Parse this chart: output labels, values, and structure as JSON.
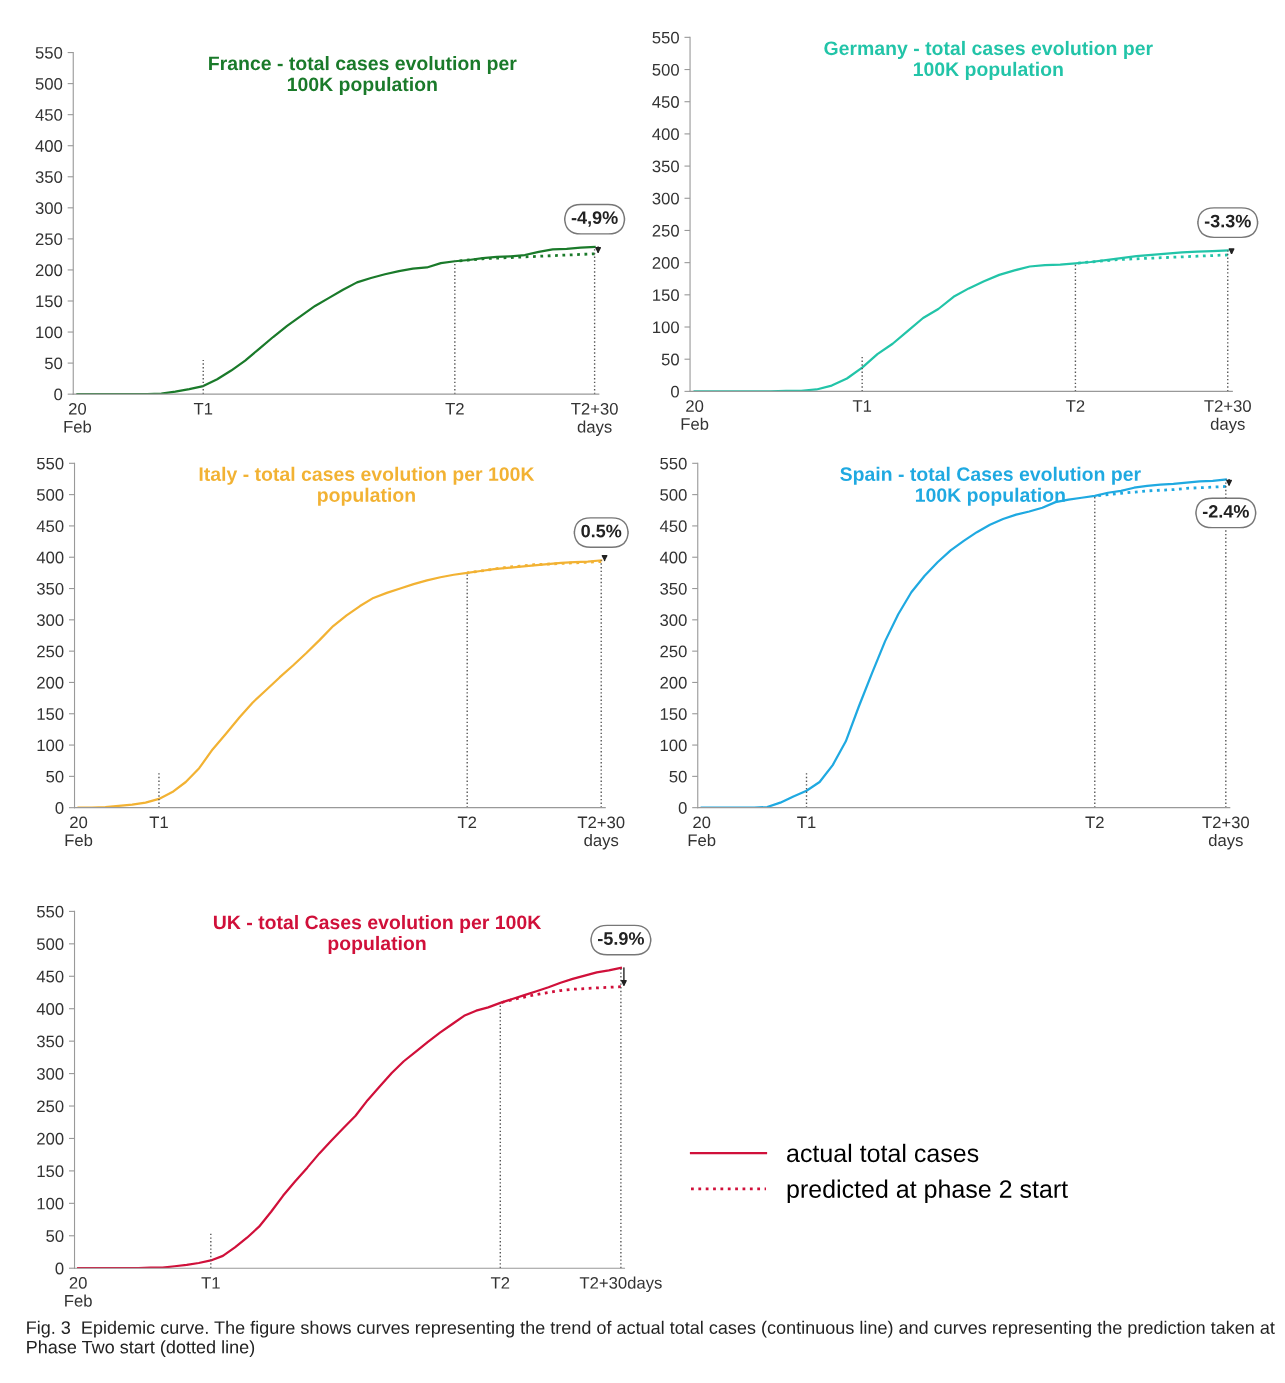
{
  "chart_data": [
    {
      "type": "line",
      "title": "France - total cases evolution per\n100K population",
      "categories": [
        "20\nFeb",
        null,
        null,
        null,
        null,
        null,
        null,
        null,
        null,
        "T1",
        null,
        null,
        null,
        null,
        null,
        null,
        null,
        null,
        null,
        null,
        null,
        null,
        null,
        null,
        null,
        null,
        null,
        "T2",
        null,
        null,
        null,
        null,
        null,
        null,
        null,
        null,
        null,
        "T2+30\ndays"
      ],
      "ylim": [
        0,
        550
      ],
      "yticks": [
        0,
        50,
        100,
        150,
        200,
        250,
        300,
        350,
        400,
        450,
        500,
        550
      ],
      "grid": false,
      "series": [
        {
          "color": "#1a7a2a",
          "line_style": "solid",
          "values": [
            0,
            0,
            0,
            0,
            0,
            0,
            1,
            4,
            8,
            13,
            24,
            38,
            54,
            73,
            92,
            110,
            126,
            142,
            155,
            168,
            180,
            187,
            193,
            198,
            202,
            204,
            211,
            214,
            216,
            219,
            221,
            222,
            224,
            229,
            233,
            234,
            236,
            237
          ]
        },
        {
          "color": "#1a7a2a",
          "line_style": "dotted",
          "values": [
            null,
            null,
            null,
            null,
            null,
            null,
            null,
            null,
            null,
            null,
            null,
            null,
            null,
            null,
            null,
            null,
            null,
            null,
            null,
            null,
            null,
            null,
            null,
            null,
            null,
            null,
            null,
            214,
            216,
            218,
            219,
            220,
            221,
            222,
            223,
            224,
            225,
            226
          ]
        }
      ],
      "ref_lines": [
        {
          "axis": "x",
          "value": "T1",
          "color": "#555555",
          "line_style": "dotted"
        },
        {
          "axis": "x",
          "value": "T2",
          "color": "#555555",
          "line_style": "dotted"
        },
        {
          "axis": "x",
          "value": "T2+30\ndays",
          "color": "#555555",
          "line_style": "dotted"
        }
      ],
      "annotations": [
        {
          "text": "-4,9%",
          "x": "T2+30\ndays",
          "y": 237
        }
      ]
    },
    {
      "type": "line",
      "title": "Germany - total cases evolution per\n100K population",
      "categories": [
        "20\nFeb",
        null,
        null,
        null,
        null,
        null,
        null,
        null,
        null,
        null,
        null,
        "T1",
        null,
        null,
        null,
        null,
        null,
        null,
        null,
        null,
        null,
        null,
        null,
        null,
        null,
        "T2",
        null,
        null,
        null,
        null,
        null,
        null,
        null,
        null,
        null,
        "T2+30\ndays"
      ],
      "ylim": [
        0,
        550
      ],
      "yticks": [
        0,
        50,
        100,
        150,
        200,
        250,
        300,
        350,
        400,
        450,
        500,
        550
      ],
      "grid": false,
      "series": [
        {
          "color": "#22c4a8",
          "line_style": "solid",
          "values": [
            0,
            0,
            0,
            0,
            0,
            0,
            1,
            1,
            3,
            9,
            20,
            37,
            58,
            74,
            94,
            114,
            128,
            147,
            160,
            171,
            181,
            188,
            194,
            196,
            197,
            199,
            201,
            204,
            207,
            210,
            212,
            214,
            216,
            217,
            218,
            219
          ]
        },
        {
          "color": "#22c4a8",
          "line_style": "dotted",
          "values": [
            null,
            null,
            null,
            null,
            null,
            null,
            null,
            null,
            null,
            null,
            null,
            null,
            null,
            null,
            null,
            null,
            null,
            null,
            null,
            null,
            null,
            null,
            null,
            null,
            null,
            199,
            201,
            203,
            205,
            206,
            207,
            208,
            209,
            210,
            211,
            212
          ]
        }
      ],
      "ref_lines": [
        {
          "axis": "x",
          "value": "T1",
          "color": "#555555",
          "line_style": "dotted"
        },
        {
          "axis": "x",
          "value": "T2",
          "color": "#555555",
          "line_style": "dotted"
        },
        {
          "axis": "x",
          "value": "T2+30\ndays",
          "color": "#555555",
          "line_style": "dotted"
        }
      ],
      "annotations": [
        {
          "text": "-3.3%",
          "x": "T2+30\ndays",
          "y": 219
        }
      ]
    },
    {
      "type": "line",
      "title": "Italy - total cases evolution per 100K\npopulation",
      "categories": [
        "20\nFeb",
        null,
        null,
        null,
        null,
        null,
        "T1",
        null,
        null,
        null,
        null,
        null,
        null,
        null,
        null,
        null,
        null,
        null,
        null,
        null,
        null,
        null,
        null,
        null,
        null,
        null,
        null,
        null,
        null,
        "T2",
        null,
        null,
        null,
        null,
        null,
        null,
        null,
        null,
        null,
        "T2+30\ndays"
      ],
      "ylim": [
        0,
        550
      ],
      "yticks": [
        0,
        50,
        100,
        150,
        200,
        250,
        300,
        350,
        400,
        450,
        500,
        550
      ],
      "grid": false,
      "series": [
        {
          "color": "#f2b233",
          "line_style": "solid",
          "values": [
            0,
            0,
            1,
            3,
            5,
            8,
            14,
            25,
            41,
            63,
            93,
            118,
            144,
            168,
            188,
            208,
            227,
            247,
            268,
            290,
            307,
            322,
            335,
            343,
            350,
            357,
            363,
            368,
            372,
            375,
            378,
            381,
            383,
            385,
            387,
            389,
            391,
            392,
            393,
            395
          ]
        },
        {
          "color": "#f2b233",
          "line_style": "dotted",
          "values": [
            null,
            null,
            null,
            null,
            null,
            null,
            null,
            null,
            null,
            null,
            null,
            null,
            null,
            null,
            null,
            null,
            null,
            null,
            null,
            null,
            null,
            null,
            null,
            null,
            null,
            null,
            null,
            null,
            null,
            375,
            378,
            381,
            384,
            386,
            388,
            389,
            390,
            391,
            392,
            393
          ]
        }
      ],
      "ref_lines": [
        {
          "axis": "x",
          "value": "T1",
          "color": "#555555",
          "line_style": "dotted"
        },
        {
          "axis": "x",
          "value": "T2",
          "color": "#555555",
          "line_style": "dotted"
        },
        {
          "axis": "x",
          "value": "T2+30\ndays",
          "color": "#555555",
          "line_style": "dotted"
        }
      ],
      "annotations": [
        {
          "text": "0.5%",
          "x": "T2+30\ndays",
          "y": 395
        }
      ]
    },
    {
      "type": "line",
      "title": "Spain - total Cases evolution per\n100K population",
      "categories": [
        "20\nFeb",
        null,
        null,
        null,
        null,
        null,
        null,
        null,
        "T1",
        null,
        null,
        null,
        null,
        null,
        null,
        null,
        null,
        null,
        null,
        null,
        null,
        null,
        null,
        null,
        null,
        null,
        null,
        null,
        null,
        null,
        "T2",
        null,
        null,
        null,
        null,
        null,
        null,
        null,
        null,
        null,
        "T2+30\ndays"
      ],
      "ylim": [
        0,
        550
      ],
      "yticks": [
        0,
        50,
        100,
        150,
        200,
        250,
        300,
        350,
        400,
        450,
        500,
        550
      ],
      "grid": false,
      "series": [
        {
          "color": "#1fa9e1",
          "line_style": "solid",
          "values": [
            0,
            0,
            0,
            0,
            0,
            1,
            8,
            18,
            27,
            41,
            68,
            106,
            162,
            215,
            266,
            309,
            344,
            370,
            392,
            411,
            426,
            440,
            452,
            461,
            468,
            473,
            479,
            488,
            492,
            495,
            498,
            503,
            506,
            511,
            514,
            516,
            517,
            519,
            521,
            522,
            524
          ]
        },
        {
          "color": "#1fa9e1",
          "line_style": "dotted",
          "values": [
            null,
            null,
            null,
            null,
            null,
            null,
            null,
            null,
            null,
            null,
            null,
            null,
            null,
            null,
            null,
            null,
            null,
            null,
            null,
            null,
            null,
            null,
            null,
            null,
            null,
            null,
            null,
            null,
            null,
            null,
            498,
            500,
            502,
            504,
            506,
            507,
            508,
            510,
            511,
            512,
            513
          ]
        }
      ],
      "ref_lines": [
        {
          "axis": "x",
          "value": "T1",
          "color": "#555555",
          "line_style": "dotted"
        },
        {
          "axis": "x",
          "value": "T2",
          "color": "#555555",
          "line_style": "dotted"
        },
        {
          "axis": "x",
          "value": "T2+30\ndays",
          "color": "#555555",
          "line_style": "dotted"
        }
      ],
      "annotations": [
        {
          "text": "-2.4%",
          "x": "T2+30\ndays",
          "y": 524
        }
      ]
    },
    {
      "type": "line",
      "title": "UK - total Cases evolution per 100K\npopulation",
      "categories": [
        "20\nFeb",
        null,
        null,
        null,
        null,
        null,
        null,
        null,
        null,
        null,
        null,
        "T1",
        null,
        null,
        null,
        null,
        null,
        null,
        null,
        null,
        null,
        null,
        null,
        null,
        null,
        null,
        null,
        null,
        null,
        null,
        null,
        null,
        null,
        null,
        null,
        "T2",
        null,
        null,
        null,
        null,
        null,
        null,
        null,
        null,
        null,
        "T2+30days"
      ],
      "ylim": [
        0,
        550
      ],
      "yticks": [
        0,
        50,
        100,
        150,
        200,
        250,
        300,
        350,
        400,
        450,
        500,
        550
      ],
      "grid": false,
      "legend": "right",
      "series": [
        {
          "name": "actual total cases",
          "color": "#d0103a",
          "line_style": "solid",
          "values": [
            0,
            0,
            0,
            0,
            0,
            0,
            1,
            1,
            3,
            5,
            8,
            12,
            19,
            32,
            47,
            64,
            87,
            112,
            134,
            155,
            177,
            197,
            216,
            235,
            259,
            280,
            301,
            319,
            334,
            349,
            363,
            376,
            389,
            397,
            402,
            409,
            415,
            421,
            427,
            433,
            440,
            446,
            451,
            456,
            459,
            463
          ]
        },
        {
          "name": "predicted at phase 2 start",
          "color": "#d0103a",
          "line_style": "dotted",
          "values": [
            null,
            null,
            null,
            null,
            null,
            null,
            null,
            null,
            null,
            null,
            null,
            null,
            null,
            null,
            null,
            null,
            null,
            null,
            null,
            null,
            null,
            null,
            null,
            null,
            null,
            null,
            null,
            null,
            null,
            null,
            null,
            null,
            null,
            null,
            null,
            409,
            414,
            418,
            422,
            425,
            428,
            430,
            431,
            432,
            433,
            434
          ]
        }
      ],
      "ref_lines": [
        {
          "axis": "x",
          "value": "T1",
          "color": "#555555",
          "line_style": "dotted"
        },
        {
          "axis": "x",
          "value": "T2",
          "color": "#555555",
          "line_style": "dotted"
        },
        {
          "axis": "x",
          "value": "T2+30days",
          "color": "#555555",
          "line_style": "dotted"
        }
      ],
      "annotations": [
        {
          "text": "-5.9%",
          "x": "T2+30days",
          "y": 463
        },
        "Fig. 3  Epidemic curve. The figure shows curves representing the trend of actual total cases (continuous line) and curves representing the prediction taken at Phase Two start (dotted line)"
      ]
    }
  ]
}
